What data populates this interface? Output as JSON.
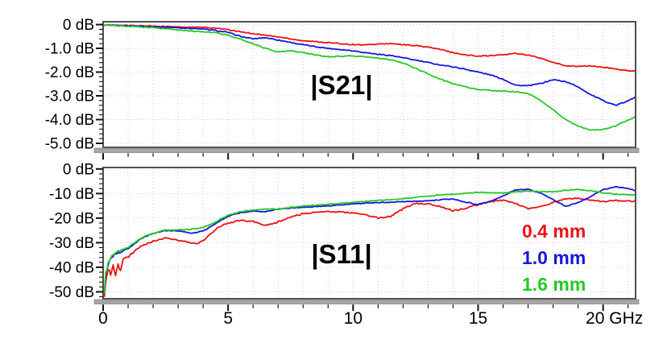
{
  "figure": {
    "description_titles": {
      "top": "|S21|",
      "bottom": "|S11|"
    }
  },
  "colors": {
    "frame": "#4f4f4f",
    "grid": "#cdcdcd",
    "axis_bar": "#a6a6a6",
    "axis_bar_edge": "#7d7d7d",
    "tick": "#111111",
    "text": "#000000",
    "red": "#ee1111",
    "blue": "#1515dd",
    "green": "#26c826"
  },
  "legend": {
    "entries": [
      {
        "label": "0.4 mm",
        "color": "#ee1111"
      },
      {
        "label": "1.0 mm",
        "color": "#1515dd"
      },
      {
        "label": "1.6 mm",
        "color": "#26c826"
      }
    ]
  },
  "chart_data": [
    {
      "id": "s21",
      "type": "line",
      "title": "|S21|",
      "xlabel": "",
      "ylabel": "dB",
      "xlim": [
        0,
        21.3
      ],
      "x_major_ticks": [
        0,
        5,
        10,
        15,
        20
      ],
      "x_minor_step": 1,
      "x_tick_labels": [],
      "grid": true,
      "y_ticks": [
        {
          "v": 0,
          "label": "0 dB"
        },
        {
          "v": -1,
          "label": "-1.0 dB"
        },
        {
          "v": -2,
          "label": "-2.0 dB"
        },
        {
          "v": -3,
          "label": "-3.0 dB"
        },
        {
          "v": -4,
          "label": "-4.0 dB"
        },
        {
          "v": -5,
          "label": "-5.0 dB"
        }
      ],
      "series": [
        {
          "name": "0.4 mm",
          "color": "#ee1111",
          "noise_base": 0.02,
          "noise_low_amp": 0,
          "noise_low_until": 0,
          "x": [
            0,
            0.5,
            1,
            1.5,
            2,
            2.5,
            3,
            3.5,
            4,
            4.5,
            5,
            5.5,
            6,
            6.5,
            7,
            7.5,
            8,
            8.5,
            9,
            9.5,
            10,
            10.5,
            11,
            11.5,
            12,
            12.5,
            13,
            13.5,
            14,
            14.5,
            15,
            15.5,
            16,
            16.5,
            17,
            17.5,
            18,
            18.5,
            19,
            19.5,
            20,
            20.5,
            21,
            21.3
          ],
          "y": [
            -0.02,
            -0.03,
            -0.04,
            -0.05,
            -0.06,
            -0.08,
            -0.1,
            -0.11,
            -0.12,
            -0.15,
            -0.22,
            -0.3,
            -0.38,
            -0.45,
            -0.52,
            -0.6,
            -0.68,
            -0.72,
            -0.76,
            -0.8,
            -0.84,
            -0.86,
            -0.82,
            -0.8,
            -0.85,
            -0.88,
            -0.95,
            -1.05,
            -1.18,
            -1.28,
            -1.32,
            -1.31,
            -1.27,
            -1.21,
            -1.28,
            -1.42,
            -1.6,
            -1.73,
            -1.76,
            -1.74,
            -1.8,
            -1.87,
            -1.94,
            -1.97
          ]
        },
        {
          "name": "1.0 mm",
          "color": "#1515dd",
          "noise_base": 0.02,
          "noise_low_amp": 0,
          "noise_low_until": 0,
          "x": [
            0,
            0.5,
            1,
            1.5,
            2,
            2.5,
            3,
            3.5,
            4,
            4.5,
            5,
            5.5,
            6,
            6.5,
            7,
            7.5,
            8,
            8.5,
            9,
            9.5,
            10,
            10.5,
            11,
            11.5,
            12,
            12.5,
            13,
            13.5,
            14,
            14.5,
            15,
            15.5,
            16,
            16.5,
            17,
            17.5,
            18,
            18.5,
            19,
            19.5,
            20,
            20.5,
            21,
            21.3
          ],
          "y": [
            -0.02,
            -0.04,
            -0.05,
            -0.07,
            -0.09,
            -0.11,
            -0.13,
            -0.16,
            -0.19,
            -0.25,
            -0.33,
            -0.5,
            -0.6,
            -0.55,
            -0.65,
            -0.75,
            -0.85,
            -0.93,
            -1.0,
            -1.05,
            -1.1,
            -1.18,
            -1.25,
            -1.3,
            -1.4,
            -1.5,
            -1.6,
            -1.7,
            -1.78,
            -1.88,
            -2.0,
            -2.12,
            -2.3,
            -2.55,
            -2.58,
            -2.48,
            -2.32,
            -2.4,
            -2.62,
            -2.95,
            -3.2,
            -3.4,
            -3.22,
            -3.04
          ]
        },
        {
          "name": "1.6 mm",
          "color": "#26c826",
          "noise_base": 0.02,
          "noise_low_amp": 0,
          "noise_low_until": 0,
          "x": [
            0,
            0.5,
            1,
            1.5,
            2,
            2.5,
            3,
            3.5,
            4,
            4.5,
            5,
            5.5,
            6,
            6.5,
            7,
            7.5,
            8,
            8.5,
            9,
            9.5,
            10,
            10.5,
            11,
            11.5,
            12,
            12.5,
            13,
            13.5,
            14,
            14.5,
            15,
            15.5,
            16,
            16.5,
            17,
            17.5,
            18,
            18.5,
            19,
            19.5,
            20,
            20.5,
            21,
            21.3
          ],
          "y": [
            -0.02,
            -0.05,
            -0.07,
            -0.1,
            -0.13,
            -0.17,
            -0.22,
            -0.27,
            -0.3,
            -0.33,
            -0.45,
            -0.62,
            -0.8,
            -1.0,
            -1.15,
            -1.1,
            -1.18,
            -1.28,
            -1.36,
            -1.33,
            -1.32,
            -1.36,
            -1.42,
            -1.48,
            -1.62,
            -1.85,
            -2.08,
            -2.3,
            -2.48,
            -2.63,
            -2.73,
            -2.78,
            -2.8,
            -2.83,
            -2.9,
            -3.2,
            -3.58,
            -4.0,
            -4.28,
            -4.44,
            -4.42,
            -4.27,
            -4.02,
            -3.86
          ]
        }
      ]
    },
    {
      "id": "s11",
      "type": "line",
      "title": "|S11|",
      "xlabel": "GHz",
      "ylabel": "dB",
      "xlim": [
        0,
        21.3
      ],
      "x_major_ticks": [
        0,
        5,
        10,
        15,
        20
      ],
      "x_minor_step": 1,
      "x_tick_labels": [
        {
          "v": 0,
          "label": "0",
          "dx": 0
        },
        {
          "v": 5,
          "label": "5",
          "dx": 0
        },
        {
          "v": 10,
          "label": "10",
          "dx": 0
        },
        {
          "v": 15,
          "label": "15",
          "dx": 0
        },
        {
          "v": 20,
          "label": "20 GHz",
          "dx": 14
        }
      ],
      "grid": true,
      "y_ticks": [
        {
          "v": 0,
          "label": "0 dB"
        },
        {
          "v": -10,
          "label": "-10 dB"
        },
        {
          "v": -20,
          "label": "-20 dB"
        },
        {
          "v": -30,
          "label": "-30 dB"
        },
        {
          "v": -40,
          "label": "-40 dB"
        },
        {
          "v": -50,
          "label": "-50 dB"
        }
      ],
      "series": [
        {
          "name": "0.4 mm",
          "color": "#ee1111",
          "noise_base": 0.28,
          "noise_low_amp": 1.6,
          "noise_low_until": 1.4,
          "x": [
            0.05,
            0.1,
            0.2,
            0.3,
            0.4,
            0.5,
            0.6,
            0.7,
            0.8,
            1,
            1.25,
            1.5,
            1.75,
            2,
            2.25,
            2.5,
            2.75,
            3,
            3.25,
            3.5,
            3.75,
            4,
            4.25,
            4.5,
            4.75,
            5,
            5.5,
            6,
            6.5,
            7,
            7.5,
            8,
            8.5,
            9,
            9.5,
            10,
            10.5,
            11,
            11.5,
            12,
            12.5,
            13,
            13.5,
            14,
            14.5,
            15,
            15.5,
            16,
            16.5,
            17,
            17.5,
            18,
            18.5,
            19,
            19.5,
            20,
            20.5,
            21,
            21.3
          ],
          "y": [
            -51,
            -45,
            -40,
            -43,
            -38,
            -44,
            -39,
            -42,
            -37,
            -36,
            -33.5,
            -31.5,
            -30.3,
            -29.4,
            -28.7,
            -28.2,
            -28.5,
            -29.0,
            -29.5,
            -30.0,
            -30.5,
            -29.2,
            -26.8,
            -24.6,
            -23.0,
            -22.0,
            -21.0,
            -21.4,
            -23.0,
            -21.6,
            -19.6,
            -18.2,
            -17.6,
            -17.4,
            -17.5,
            -17.9,
            -18.7,
            -20.0,
            -19.2,
            -16.3,
            -14.0,
            -14.2,
            -15.3,
            -17.0,
            -16.0,
            -14.5,
            -13.2,
            -12.8,
            -14.0,
            -16.2,
            -15.5,
            -13.5,
            -12.0,
            -12.0,
            -12.8,
            -13.3,
            -12.9,
            -13.0,
            -13.1
          ]
        },
        {
          "name": "1.0 mm",
          "color": "#1515dd",
          "noise_base": 0.16,
          "noise_low_amp": 0.8,
          "noise_low_until": 1.2,
          "x": [
            0.05,
            0.1,
            0.2,
            0.3,
            0.4,
            0.5,
            0.6,
            0.7,
            0.8,
            1,
            1.25,
            1.5,
            1.75,
            2,
            2.25,
            2.5,
            2.75,
            3,
            3.25,
            3.5,
            3.75,
            4,
            4.25,
            4.5,
            4.75,
            5,
            5.5,
            6,
            6.5,
            7,
            7.5,
            8,
            8.5,
            9,
            9.5,
            10,
            10.5,
            11,
            11.5,
            12,
            12.5,
            13,
            13.5,
            14,
            14.5,
            15,
            15.5,
            16,
            16.5,
            17,
            17.5,
            18,
            18.5,
            19,
            19.5,
            20,
            20.5,
            21,
            21.3
          ],
          "y": [
            -51,
            -44,
            -39,
            -36.5,
            -35.2,
            -34.6,
            -34.2,
            -33.8,
            -33.2,
            -32.4,
            -30.4,
            -28.5,
            -27.2,
            -26.3,
            -25.6,
            -25.0,
            -25.1,
            -25.3,
            -25.6,
            -26.0,
            -25.8,
            -25.2,
            -23.8,
            -22.3,
            -20.6,
            -19.2,
            -17.8,
            -17.1,
            -17.4,
            -16.3,
            -15.9,
            -15.6,
            -15.3,
            -15.0,
            -14.6,
            -14.2,
            -13.9,
            -13.7,
            -13.5,
            -13.3,
            -13.1,
            -12.9,
            -12.5,
            -12.2,
            -13.5,
            -14.5,
            -13.2,
            -11.0,
            -8.4,
            -8.3,
            -9.8,
            -12.5,
            -15.2,
            -13.8,
            -11.2,
            -8.4,
            -7.3,
            -7.8,
            -9.0
          ]
        },
        {
          "name": "1.6 mm",
          "color": "#26c826",
          "noise_base": 0.16,
          "noise_low_amp": 0.8,
          "noise_low_until": 1.2,
          "x": [
            0.05,
            0.1,
            0.2,
            0.3,
            0.4,
            0.5,
            0.6,
            0.7,
            0.8,
            1,
            1.25,
            1.5,
            1.75,
            2,
            2.25,
            2.5,
            2.75,
            3,
            3.25,
            3.5,
            3.75,
            4,
            4.25,
            4.5,
            4.75,
            5,
            5.5,
            6,
            6.5,
            7,
            7.5,
            8,
            8.5,
            9,
            9.5,
            10,
            10.5,
            11,
            11.5,
            12,
            12.5,
            13,
            13.5,
            14,
            14.5,
            15,
            15.5,
            16,
            16.5,
            17,
            17.5,
            18,
            18.5,
            19,
            19.5,
            20,
            20.5,
            21,
            21.3
          ],
          "y": [
            -51,
            -43,
            -38.5,
            -36,
            -34.8,
            -34.2,
            -33.6,
            -33.1,
            -32.6,
            -32.0,
            -30.0,
            -28.2,
            -27.0,
            -26.2,
            -25.5,
            -24.9,
            -24.8,
            -24.8,
            -24.7,
            -24.5,
            -24.2,
            -23.8,
            -22.8,
            -21.6,
            -20.1,
            -18.8,
            -17.4,
            -16.7,
            -16.3,
            -16.4,
            -15.6,
            -15.1,
            -14.7,
            -14.3,
            -14.0,
            -13.6,
            -13.2,
            -12.8,
            -12.5,
            -12.1,
            -11.6,
            -11.1,
            -10.5,
            -10.3,
            -9.9,
            -9.5,
            -9.7,
            -9.8,
            -9.3,
            -9.1,
            -9.2,
            -9.3,
            -8.7,
            -8.4,
            -8.9,
            -9.7,
            -10.2,
            -10.5,
            -10.6
          ]
        }
      ]
    }
  ]
}
